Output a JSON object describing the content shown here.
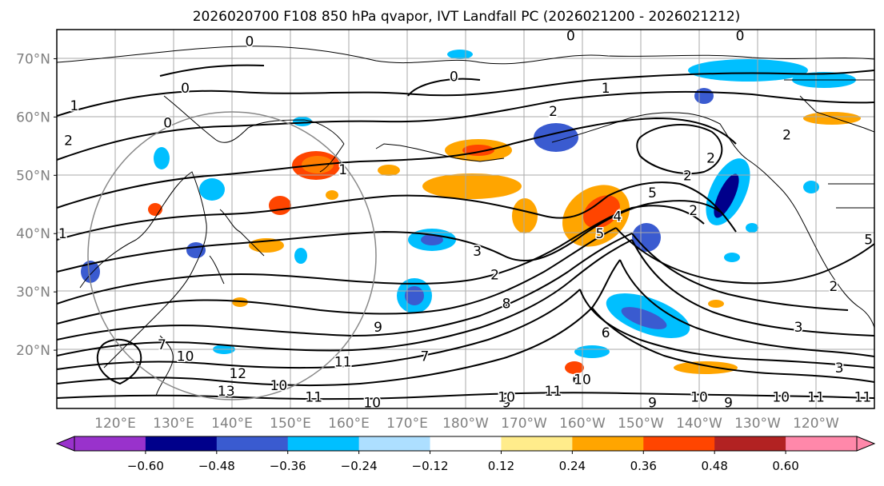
{
  "chart_data": {
    "type": "heatmap",
    "title": "2026020700 F108 850 hPa qvapor, IVT Landfall PC (2026021200 - 2026021212)",
    "lat_ticks": [
      "70°N",
      "60°N",
      "50°N",
      "40°N",
      "30°N",
      "20°N"
    ],
    "lat_values": [
      70,
      60,
      50,
      40,
      30,
      20
    ],
    "lon_ticks": [
      "120°E",
      "130°E",
      "140°E",
      "150°E",
      "160°E",
      "170°E",
      "180°W",
      "170°W",
      "160°W",
      "150°W",
      "140°W",
      "130°W",
      "120°W"
    ],
    "lon_values": [
      120,
      130,
      140,
      150,
      160,
      170,
      180,
      190,
      200,
      210,
      220,
      230,
      240
    ],
    "map_extent": {
      "lon": [
        110,
        250
      ],
      "lat": [
        10,
        75
      ]
    },
    "grid": true,
    "colorbar": {
      "ticks": [
        "−0.60",
        "−0.48",
        "−0.36",
        "−0.24",
        "−0.12",
        "0.12",
        "0.24",
        "0.36",
        "0.48",
        "0.60"
      ],
      "colors": [
        "#9932CC",
        "#00008B",
        "#3A5BD0",
        "#00BFFF",
        "#ADDFFF",
        "#FFFFFF",
        "#FFEC8B",
        "#FFA500",
        "#FF4500",
        "#B22222",
        "#FF88AA"
      ],
      "extend": "both"
    },
    "contour_labels": [
      {
        "text": "0",
        "lon": 132,
        "lat": 65
      },
      {
        "text": "0",
        "lon": 129,
        "lat": 59
      },
      {
        "text": "0",
        "lon": 143,
        "lat": 73
      },
      {
        "text": "0",
        "lon": 178,
        "lat": 67
      },
      {
        "text": "0",
        "lon": 198,
        "lat": 74
      },
      {
        "text": "0",
        "lon": 227,
        "lat": 74
      },
      {
        "text": "1",
        "lon": 113,
        "lat": 62
      },
      {
        "text": "1",
        "lon": 111,
        "lat": 40
      },
      {
        "text": "1",
        "lon": 204,
        "lat": 65
      },
      {
        "text": "1",
        "lon": 159,
        "lat": 51
      },
      {
        "text": "2",
        "lon": 112,
        "lat": 56
      },
      {
        "text": "2",
        "lon": 195,
        "lat": 61
      },
      {
        "text": "2",
        "lon": 222,
        "lat": 53
      },
      {
        "text": "2",
        "lon": 235,
        "lat": 57
      },
      {
        "text": "2",
        "lon": 219,
        "lat": 44
      },
      {
        "text": "2",
        "lon": 218,
        "lat": 50
      },
      {
        "text": "2",
        "lon": 185,
        "lat": 33
      },
      {
        "text": "2",
        "lon": 243,
        "lat": 31
      },
      {
        "text": "3",
        "lon": 182,
        "lat": 37
      },
      {
        "text": "3",
        "lon": 237,
        "lat": 24
      },
      {
        "text": "3",
        "lon": 244,
        "lat": 17
      },
      {
        "text": "4",
        "lon": 206,
        "lat": 43
      },
      {
        "text": "5",
        "lon": 212,
        "lat": 47
      },
      {
        "text": "5",
        "lon": 203,
        "lat": 40
      },
      {
        "text": "5",
        "lon": 249,
        "lat": 39
      },
      {
        "text": "6",
        "lon": 204,
        "lat": 23
      },
      {
        "text": "6",
        "lon": 199,
        "lat": 15
      },
      {
        "text": "7",
        "lon": 128,
        "lat": 21
      },
      {
        "text": "7",
        "lon": 173,
        "lat": 19
      },
      {
        "text": "8",
        "lon": 187,
        "lat": 28
      },
      {
        "text": "9",
        "lon": 165,
        "lat": 24
      },
      {
        "text": "9",
        "lon": 187,
        "lat": 11
      },
      {
        "text": "9",
        "lon": 212,
        "lat": 11
      },
      {
        "text": "9",
        "lon": 225,
        "lat": 11
      },
      {
        "text": "10",
        "lon": 132,
        "lat": 19
      },
      {
        "text": "10",
        "lon": 148,
        "lat": 14
      },
      {
        "text": "10",
        "lon": 164,
        "lat": 11
      },
      {
        "text": "10",
        "lon": 187,
        "lat": 12
      },
      {
        "text": "10",
        "lon": 200,
        "lat": 15
      },
      {
        "text": "10",
        "lon": 220,
        "lat": 12
      },
      {
        "text": "10",
        "lon": 234,
        "lat": 12
      },
      {
        "text": "11",
        "lon": 159,
        "lat": 18
      },
      {
        "text": "11",
        "lon": 154,
        "lat": 12
      },
      {
        "text": "11",
        "lon": 195,
        "lat": 13
      },
      {
        "text": "11",
        "lon": 240,
        "lat": 12
      },
      {
        "text": "11",
        "lon": 248,
        "lat": 12
      },
      {
        "text": "12",
        "lon": 141,
        "lat": 16
      },
      {
        "text": "13",
        "lon": 139,
        "lat": 13
      }
    ]
  }
}
